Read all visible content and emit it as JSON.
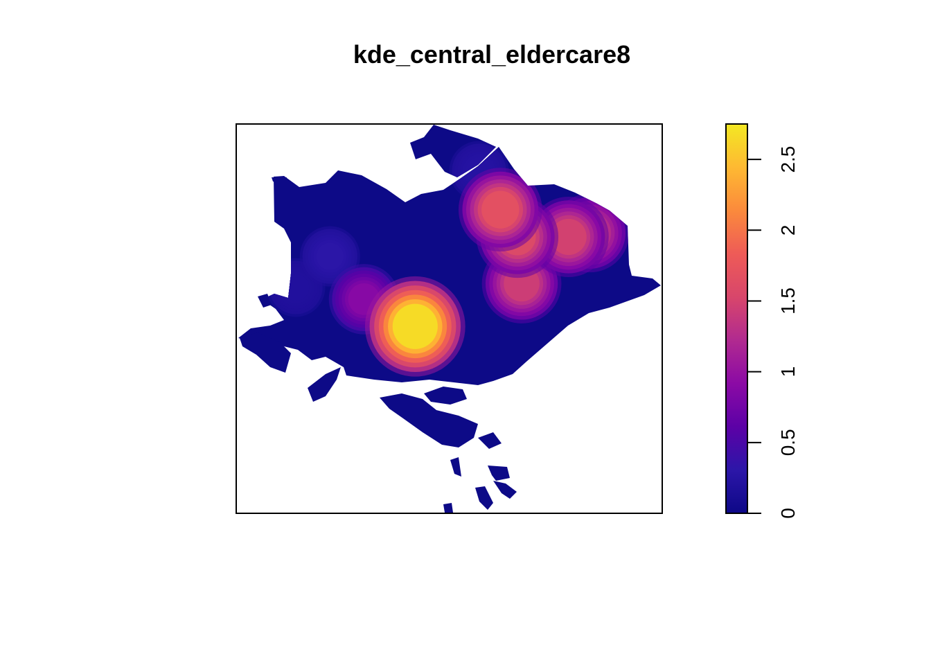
{
  "chart_data": {
    "type": "heatmap",
    "title": "kde_central_eldercare8",
    "xlabel": "",
    "ylabel": "",
    "grid": false,
    "legend_position": "right",
    "colorbar": {
      "min": 0,
      "max": 2.75,
      "ticks": [
        0,
        0.5,
        1,
        1.5,
        2,
        2.5
      ],
      "tick_labels": [
        "0",
        "0.5",
        "1",
        "1.5",
        "2",
        "2.5"
      ],
      "colors": [
        "#0d0887",
        "#2c16a8",
        "#5c01a6",
        "#8b0aa5",
        "#b12a90",
        "#d8466b",
        "#ee5b57",
        "#fb8a3c",
        "#feb932",
        "#f3e823"
      ]
    },
    "hotspots": [
      {
        "x": 0.42,
        "y": 0.48,
        "density": 2.7
      },
      {
        "x": 0.62,
        "y": 0.78,
        "density": 1.7
      },
      {
        "x": 0.66,
        "y": 0.71,
        "density": 1.6
      },
      {
        "x": 0.78,
        "y": 0.71,
        "density": 1.5
      },
      {
        "x": 0.83,
        "y": 0.72,
        "density": 1.4
      },
      {
        "x": 0.67,
        "y": 0.59,
        "density": 1.45
      },
      {
        "x": 0.3,
        "y": 0.55,
        "density": 0.9
      },
      {
        "x": 0.22,
        "y": 0.66,
        "density": 0.3
      },
      {
        "x": 0.57,
        "y": 0.88,
        "density": 0.25
      },
      {
        "x": 0.14,
        "y": 0.58,
        "density": 0.2
      }
    ]
  }
}
